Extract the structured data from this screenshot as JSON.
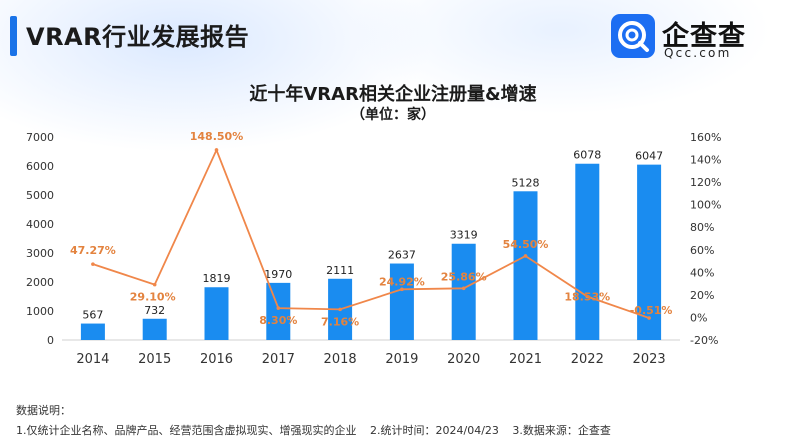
{
  "header": {
    "title": "VRAR行业发展报告",
    "logo_text": "企查查",
    "logo_sub": "Qcc.com"
  },
  "colors": {
    "bar": "#1a8cf0",
    "line": "#f0874a",
    "axis_text": "#333333",
    "label_text": "#e3833f"
  },
  "chart_data": {
    "type": "bar",
    "title": "近十年VRAR相关企业注册量&增速",
    "subtitle": "（单位：家）",
    "categories": [
      "2014",
      "2015",
      "2016",
      "2017",
      "2018",
      "2019",
      "2020",
      "2021",
      "2022",
      "2023"
    ],
    "series": [
      {
        "name": "注册量",
        "type": "bar",
        "axis": "left",
        "values": [
          567,
          732,
          1819,
          1970,
          2111,
          2637,
          3319,
          5128,
          6078,
          6047
        ],
        "labels": [
          "567",
          "732",
          "1819",
          "1970",
          "2111",
          "2637",
          "3319",
          "5128",
          "6078",
          "6047"
        ]
      },
      {
        "name": "增速",
        "type": "line",
        "axis": "right",
        "values": [
          47.27,
          29.1,
          148.5,
          8.3,
          7.16,
          24.92,
          25.86,
          54.5,
          18.53,
          -0.51
        ],
        "labels": [
          "47.27%",
          "29.10%",
          "148.50%",
          "8.30%",
          "7.16%",
          "24.92%",
          "25.86%",
          "54.50%",
          "18.53%",
          "-0.51%"
        ]
      }
    ],
    "ylim_left": [
      0,
      7000
    ],
    "yticks_left": [
      "0",
      "1000",
      "2000",
      "3000",
      "4000",
      "5000",
      "6000",
      "7000"
    ],
    "ylim_right": [
      -20,
      160
    ],
    "yticks_right": [
      "-20%",
      "0%",
      "20%",
      "40%",
      "60%",
      "80%",
      "100%",
      "120%",
      "140%",
      "160%"
    ],
    "grid": false
  },
  "notes": {
    "label": "数据说明：",
    "items": [
      "1.仅统计企业名称、品牌产品、经营范围含虚拟现实、增强现实的企业",
      "2.统计时间：2024/04/23",
      "3.数据来源：企查查"
    ]
  }
}
